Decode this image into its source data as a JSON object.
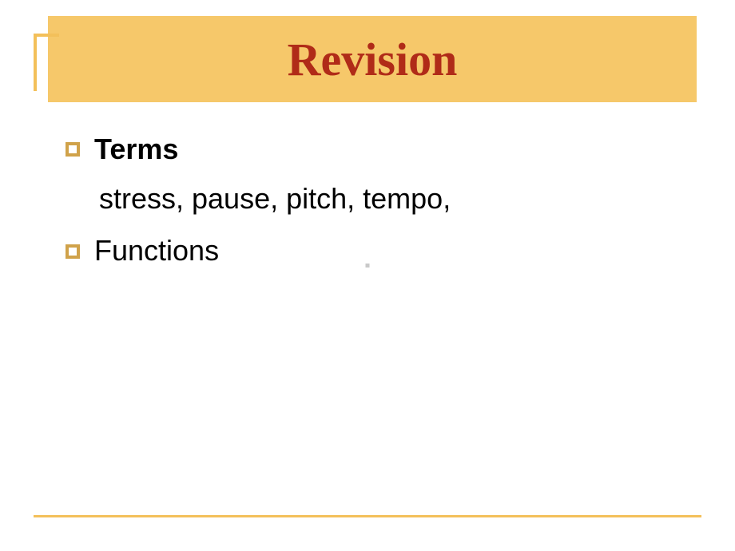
{
  "slide": {
    "title": "Revision",
    "title_color": "#b02b18",
    "title_bg": "#f6c86a",
    "title_fontsize": 58,
    "accent_color": "#f3c05a",
    "bullet_border_color": "#d0a24a",
    "body_fontsize": 36,
    "body_color": "#000000",
    "items": [
      {
        "label": "Terms",
        "bold": true,
        "sub": "stress, pause, pitch, tempo,"
      },
      {
        "label": "Functions",
        "bold": false,
        "sub": null
      }
    ],
    "background": "#ffffff",
    "bottom_rule_color": "#f3c05a"
  }
}
